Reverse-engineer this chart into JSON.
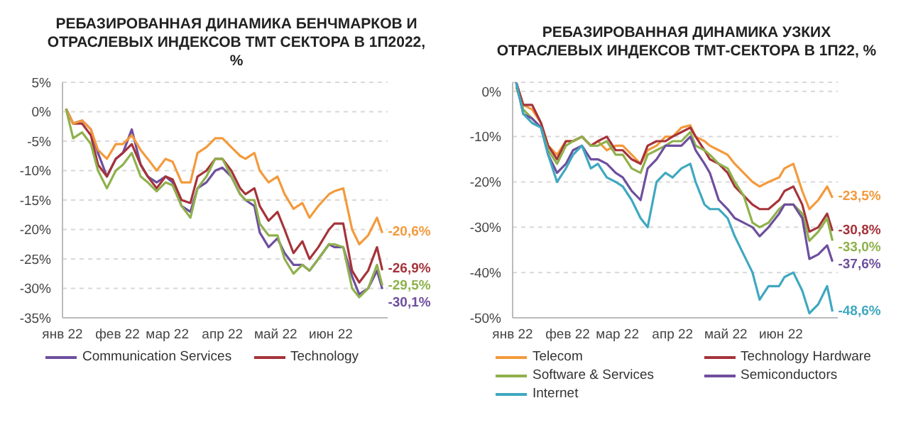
{
  "chart_data": [
    {
      "type": "line",
      "title": "РЕБАЗИРОВАННАЯ ДИНАМИКА БЕНЧМАРКОВ И ОТРАСЛЕВЫХ ИНДЕКСОВ ТМТ СЕКТОРА В 1П2022, %",
      "x": [
        "2022-01-03",
        "2022-01-07",
        "2022-01-12",
        "2022-01-17",
        "2022-01-21",
        "2022-01-26",
        "2022-01-31",
        "2022-02-04",
        "2022-02-09",
        "2022-02-14",
        "2022-02-18",
        "2022-02-23",
        "2022-02-28",
        "2022-03-04",
        "2022-03-09",
        "2022-03-14",
        "2022-03-18",
        "2022-03-23",
        "2022-03-28",
        "2022-04-01",
        "2022-04-06",
        "2022-04-11",
        "2022-04-14",
        "2022-04-19",
        "2022-04-22",
        "2022-04-27",
        "2022-05-02",
        "2022-05-06",
        "2022-05-11",
        "2022-05-16",
        "2022-05-20",
        "2022-05-25",
        "2022-05-31",
        "2022-06-03",
        "2022-06-08",
        "2022-06-13",
        "2022-06-17",
        "2022-06-22",
        "2022-06-27",
        "2022-06-30"
      ],
      "series": [
        {
          "name": "Communication Services",
          "color": "#6e4f9e",
          "values": [
            0.5,
            -2,
            -1.5,
            -3,
            -7,
            -11,
            -8,
            -7,
            -3,
            -9,
            -11,
            -12,
            -11,
            -12,
            -16,
            -17,
            -13,
            -12,
            -10,
            -9.5,
            -11,
            -14,
            -15,
            -16,
            -20.5,
            -23,
            -21.5,
            -24,
            -26,
            -26,
            -27,
            -25,
            -22.5,
            -23,
            -23,
            -28,
            -31,
            -30,
            -27,
            -30.1
          ]
        },
        {
          "name": "Technology",
          "color": "#a5333a",
          "values": [
            0.5,
            -2,
            -2,
            -4,
            -9,
            -11,
            -8,
            -7,
            -5.5,
            -9,
            -11,
            -13,
            -11,
            -11.5,
            -15,
            -15.5,
            -11,
            -10,
            -8,
            -8,
            -10,
            -13,
            -14,
            -13,
            -16,
            -18.5,
            -17,
            -20,
            -24,
            -22,
            -25,
            -23,
            -20,
            -19,
            -19,
            -27,
            -29,
            -27,
            -23,
            -26.9
          ]
        },
        {
          "color": "#f39a3c",
          "values": [
            0.5,
            -2,
            -1.5,
            -3,
            -6.5,
            -8,
            -5.5,
            -5.5,
            -4,
            -6.5,
            -8,
            -10,
            -8,
            -8.5,
            -12,
            -12,
            -7,
            -6,
            -4.5,
            -4.5,
            -6,
            -7.5,
            -8,
            -7,
            -10,
            -12,
            -11,
            -14,
            -16.5,
            -15.5,
            -18,
            -16,
            -14,
            -13.5,
            -13,
            -20,
            -22.5,
            -21,
            -18,
            -20.6
          ]
        },
        {
          "color": "#8fb14c",
          "values": [
            0.5,
            -4.5,
            -3.5,
            -5.5,
            -10,
            -13,
            -10,
            -9,
            -7,
            -11,
            -12,
            -13.5,
            -12,
            -12.5,
            -16,
            -18,
            -13,
            -11,
            -8,
            -8,
            -11,
            -14,
            -15,
            -15,
            -19,
            -21,
            -21,
            -25,
            -27.5,
            -26,
            -27,
            -25,
            -22.5,
            -22.5,
            -23,
            -30,
            -31.5,
            -30,
            -26,
            -29.5
          ]
        }
      ],
      "annotations": [
        {
          "text": "-30,1%",
          "x": "2022-06-30",
          "y": -30.1
        },
        {
          "text": "-26,9%",
          "x": "2022-06-30",
          "y": -26.9
        },
        {
          "text": "-20,6%",
          "x": "2022-06-30",
          "y": -20.6
        },
        {
          "text": "-29,5%",
          "x": "2022-06-30",
          "y": -29.5
        }
      ],
      "xlim": [
        "2022-01-01",
        "2022-07-03"
      ],
      "xticks": [
        {
          "value": "2022-01-01",
          "label": "янв 22"
        },
        {
          "value": "2022-02-01",
          "label": "фев 22"
        },
        {
          "value": "2022-03-01",
          "label": "мар 22"
        },
        {
          "value": "2022-04-01",
          "label": "апр 22"
        },
        {
          "value": "2022-05-01",
          "label": "май 22"
        },
        {
          "value": "2022-06-01",
          "label": "июн 22"
        }
      ],
      "ylim": [
        -35,
        5
      ],
      "yticks": [
        {
          "value": -35,
          "label": "-35%"
        },
        {
          "value": -30,
          "label": "-30%"
        },
        {
          "value": -25,
          "label": "-25%"
        },
        {
          "value": -20,
          "label": "-20%"
        },
        {
          "value": -15,
          "label": "-15%"
        },
        {
          "value": -10,
          "label": "-10%"
        },
        {
          "value": -5,
          "label": "-5%"
        },
        {
          "value": 0,
          "label": "0%"
        },
        {
          "value": 5,
          "label": "5%"
        }
      ],
      "grid": "y",
      "legend": "bottom",
      "marker": "none",
      "line_style": "solid"
    },
    {
      "type": "line",
      "title": "РЕБАЗИРОВАННАЯ ДИНАМИКА УЗКИХ ОТРАСЛЕВЫХ ИНДЕКСОВ ТМТ-СЕКТОРА В 1П22, %",
      "x": [
        "2022-01-03",
        "2022-01-07",
        "2022-01-12",
        "2022-01-17",
        "2022-01-21",
        "2022-01-26",
        "2022-01-31",
        "2022-02-04",
        "2022-02-09",
        "2022-02-14",
        "2022-02-18",
        "2022-02-23",
        "2022-02-28",
        "2022-03-04",
        "2022-03-09",
        "2022-03-14",
        "2022-03-18",
        "2022-03-23",
        "2022-03-28",
        "2022-04-01",
        "2022-04-06",
        "2022-04-11",
        "2022-04-14",
        "2022-04-19",
        "2022-04-22",
        "2022-04-27",
        "2022-05-02",
        "2022-05-06",
        "2022-05-11",
        "2022-05-16",
        "2022-05-20",
        "2022-05-25",
        "2022-05-31",
        "2022-06-03",
        "2022-06-08",
        "2022-06-13",
        "2022-06-17",
        "2022-06-22",
        "2022-06-27",
        "2022-06-30"
      ],
      "series": [
        {
          "name": "Telecom",
          "color": "#f39a3c",
          "values": [
            2,
            -3,
            -4,
            -7,
            -12,
            -14,
            -11,
            -11,
            -10,
            -12,
            -11,
            -13,
            -12,
            -12,
            -14,
            -16,
            -13,
            -12,
            -10,
            -10,
            -8,
            -7.5,
            -10,
            -11,
            -12,
            -13,
            -14,
            -16,
            -18,
            -20,
            -21,
            -20,
            -19,
            -17,
            -16,
            -22,
            -26,
            -24,
            -21,
            -23.5
          ]
        },
        {
          "name": "Technology Hardware",
          "color": "#a5333a",
          "values": [
            2,
            -3,
            -3,
            -7,
            -12,
            -15,
            -11,
            -11,
            -10,
            -12,
            -11,
            -10,
            -13,
            -13,
            -15,
            -16,
            -12,
            -11,
            -11,
            -10,
            -9,
            -8,
            -10,
            -13,
            -15,
            -16,
            -18,
            -21,
            -23,
            -25,
            -26,
            -26,
            -24,
            -22,
            -21,
            -25,
            -31,
            -30,
            -27,
            -30.8
          ]
        },
        {
          "name": "Software & Services",
          "color": "#8fb14c",
          "values": [
            1,
            -4,
            -6,
            -8,
            -13,
            -16,
            -12,
            -11,
            -10,
            -12,
            -12,
            -11,
            -14,
            -14,
            -17,
            -18,
            -14,
            -13,
            -12,
            -11,
            -11,
            -9,
            -12,
            -13,
            -14,
            -16,
            -17,
            -20,
            -23,
            -29,
            -30,
            -29,
            -26,
            -25,
            -25,
            -27,
            -33,
            -31,
            -28,
            -33.0
          ]
        },
        {
          "name": "Semiconductors",
          "color": "#6e4f9e",
          "values": [
            2,
            -5,
            -6,
            -8,
            -14,
            -18,
            -16,
            -13,
            -12,
            -15,
            -15,
            -16,
            -18,
            -19,
            -22,
            -24,
            -17,
            -15,
            -12,
            -12,
            -12,
            -10,
            -13,
            -16,
            -18,
            -24,
            -26,
            -28,
            -29,
            -30,
            -32,
            -30,
            -27,
            -25,
            -25,
            -28,
            -37,
            -36,
            -34,
            -37.6
          ]
        },
        {
          "name": "Internet",
          "color": "#3fa8c0",
          "values": [
            2,
            -5,
            -7,
            -8,
            -14,
            -20,
            -17,
            -14,
            -12,
            -17,
            -16,
            -19,
            -20,
            -21,
            -24,
            -28,
            -30,
            -20,
            -18,
            -19,
            -17,
            -16,
            -20,
            -25,
            -26,
            -26,
            -28,
            -32,
            -36,
            -40,
            -46,
            -43,
            -43,
            -41,
            -40,
            -44,
            -49,
            -47,
            -43,
            -48.6
          ]
        }
      ],
      "annotations": [
        {
          "text": "-23,5%",
          "x": "2022-06-30",
          "y": -23.5
        },
        {
          "text": "-30,8%",
          "x": "2022-06-30",
          "y": -30.8
        },
        {
          "text": "-33,0%",
          "x": "2022-06-30",
          "y": -33.0
        },
        {
          "text": "-37,6%",
          "x": "2022-06-30",
          "y": -37.6
        },
        {
          "text": "-48,6%",
          "x": "2022-06-30",
          "y": -48.6
        }
      ],
      "xlim": [
        "2022-01-01",
        "2022-07-03"
      ],
      "xticks": [
        {
          "value": "2022-01-01",
          "label": "янв 22"
        },
        {
          "value": "2022-02-01",
          "label": "фев 22"
        },
        {
          "value": "2022-03-01",
          "label": "мар 22"
        },
        {
          "value": "2022-04-01",
          "label": "апр 22"
        },
        {
          "value": "2022-05-01",
          "label": "май 22"
        },
        {
          "value": "2022-06-01",
          "label": "июн 22"
        }
      ],
      "ylim": [
        -50,
        2
      ],
      "yticks": [
        {
          "value": -50,
          "label": "-50%"
        },
        {
          "value": -40,
          "label": "-40%"
        },
        {
          "value": -30,
          "label": "-30%"
        },
        {
          "value": -20,
          "label": "-20%"
        },
        {
          "value": -10,
          "label": "-10%"
        },
        {
          "value": 0,
          "label": "0%"
        }
      ],
      "grid": "y",
      "legend": "bottom",
      "marker": "none",
      "line_style": "solid"
    }
  ]
}
